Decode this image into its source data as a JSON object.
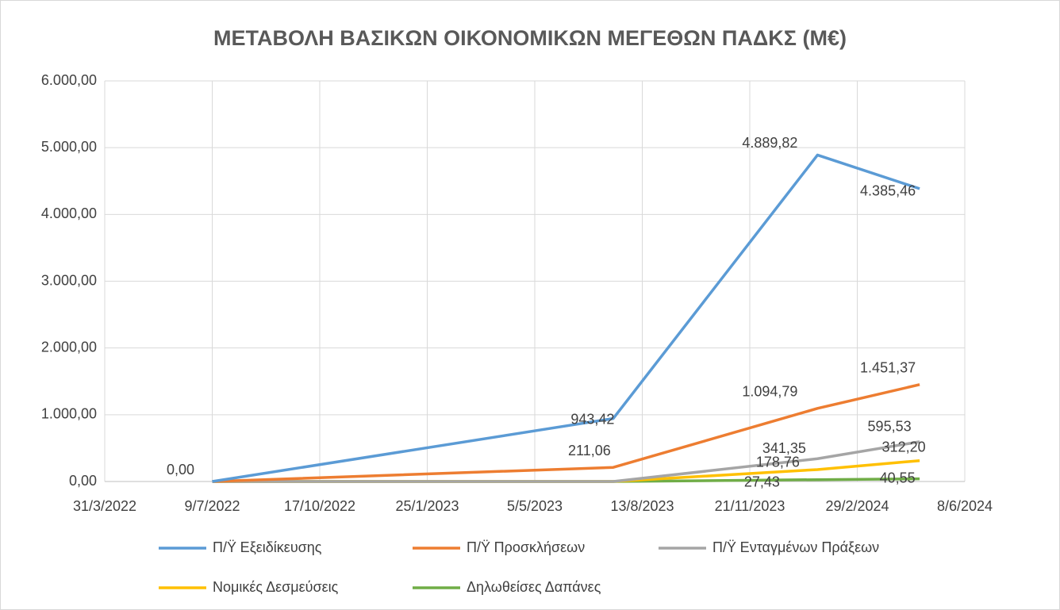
{
  "chart_data": {
    "type": "line",
    "title": "ΜΕΤΑΒΟΛΗ ΒΑΣΙΚΩΝ ΟΙΚΟΝΟΜΙΚΩΝ ΜΕΓΕΘΩΝ ΠΑΔΚΣ (Μ€)",
    "x": [
      "9/7/2022",
      "17/7/2023",
      "23/1/2024",
      "27/4/2024"
    ],
    "series": [
      {
        "name": "Π/Ϋ Εξειδίκευσης",
        "color": "#5b9bd5",
        "values": [
          0,
          943.42,
          4889.82,
          4385.46
        ],
        "value_labels": [
          "0,00",
          "943,42",
          "4.889,82",
          "4.385,46"
        ]
      },
      {
        "name": "Π/Ϋ Προσκλήσεων",
        "color": "#ed7d31",
        "values": [
          0,
          211.06,
          1094.79,
          1451.37
        ],
        "value_labels": [
          null,
          "211,06",
          "1.094,79",
          "1.451,37"
        ]
      },
      {
        "name": "Π/Ϋ Ενταγμένων Πράξεων",
        "color": "#a5a5a5",
        "values": [
          0,
          0,
          341.35,
          595.53
        ],
        "value_labels": [
          null,
          null,
          "341,35",
          "595,53"
        ]
      },
      {
        "name": "Νομικές Δεσμεύσεις",
        "color": "#ffc000",
        "values": [
          0,
          0,
          178.76,
          312.2
        ],
        "value_labels": [
          null,
          null,
          "178,76",
          "312,20"
        ]
      },
      {
        "name": "Δηλωθείσες Δαπάνες",
        "color": "#70ad47",
        "values": [
          0,
          0,
          27.43,
          40.55
        ],
        "value_labels": [
          null,
          null,
          "27,43",
          "40,55"
        ]
      }
    ],
    "xlim": [
      "31/3/2022",
      "8/6/2024"
    ],
    "xticks": [
      "31/3/2022",
      "9/7/2022",
      "17/10/2022",
      "25/1/2023",
      "5/5/2023",
      "13/8/2023",
      "21/11/2023",
      "29/2/2024",
      "8/6/2024"
    ],
    "ylim": [
      0,
      6000
    ],
    "yticks": [
      {
        "value": 0,
        "label": "0,00"
      },
      {
        "value": 1000,
        "label": "1.000,00"
      },
      {
        "value": 2000,
        "label": "2.000,00"
      },
      {
        "value": 3000,
        "label": "3.000,00"
      },
      {
        "value": 4000,
        "label": "4.000,00"
      },
      {
        "value": 5000,
        "label": "5.000,00"
      },
      {
        "value": 6000,
        "label": "6.000,00"
      }
    ],
    "grid": true,
    "legend": "bottom"
  }
}
